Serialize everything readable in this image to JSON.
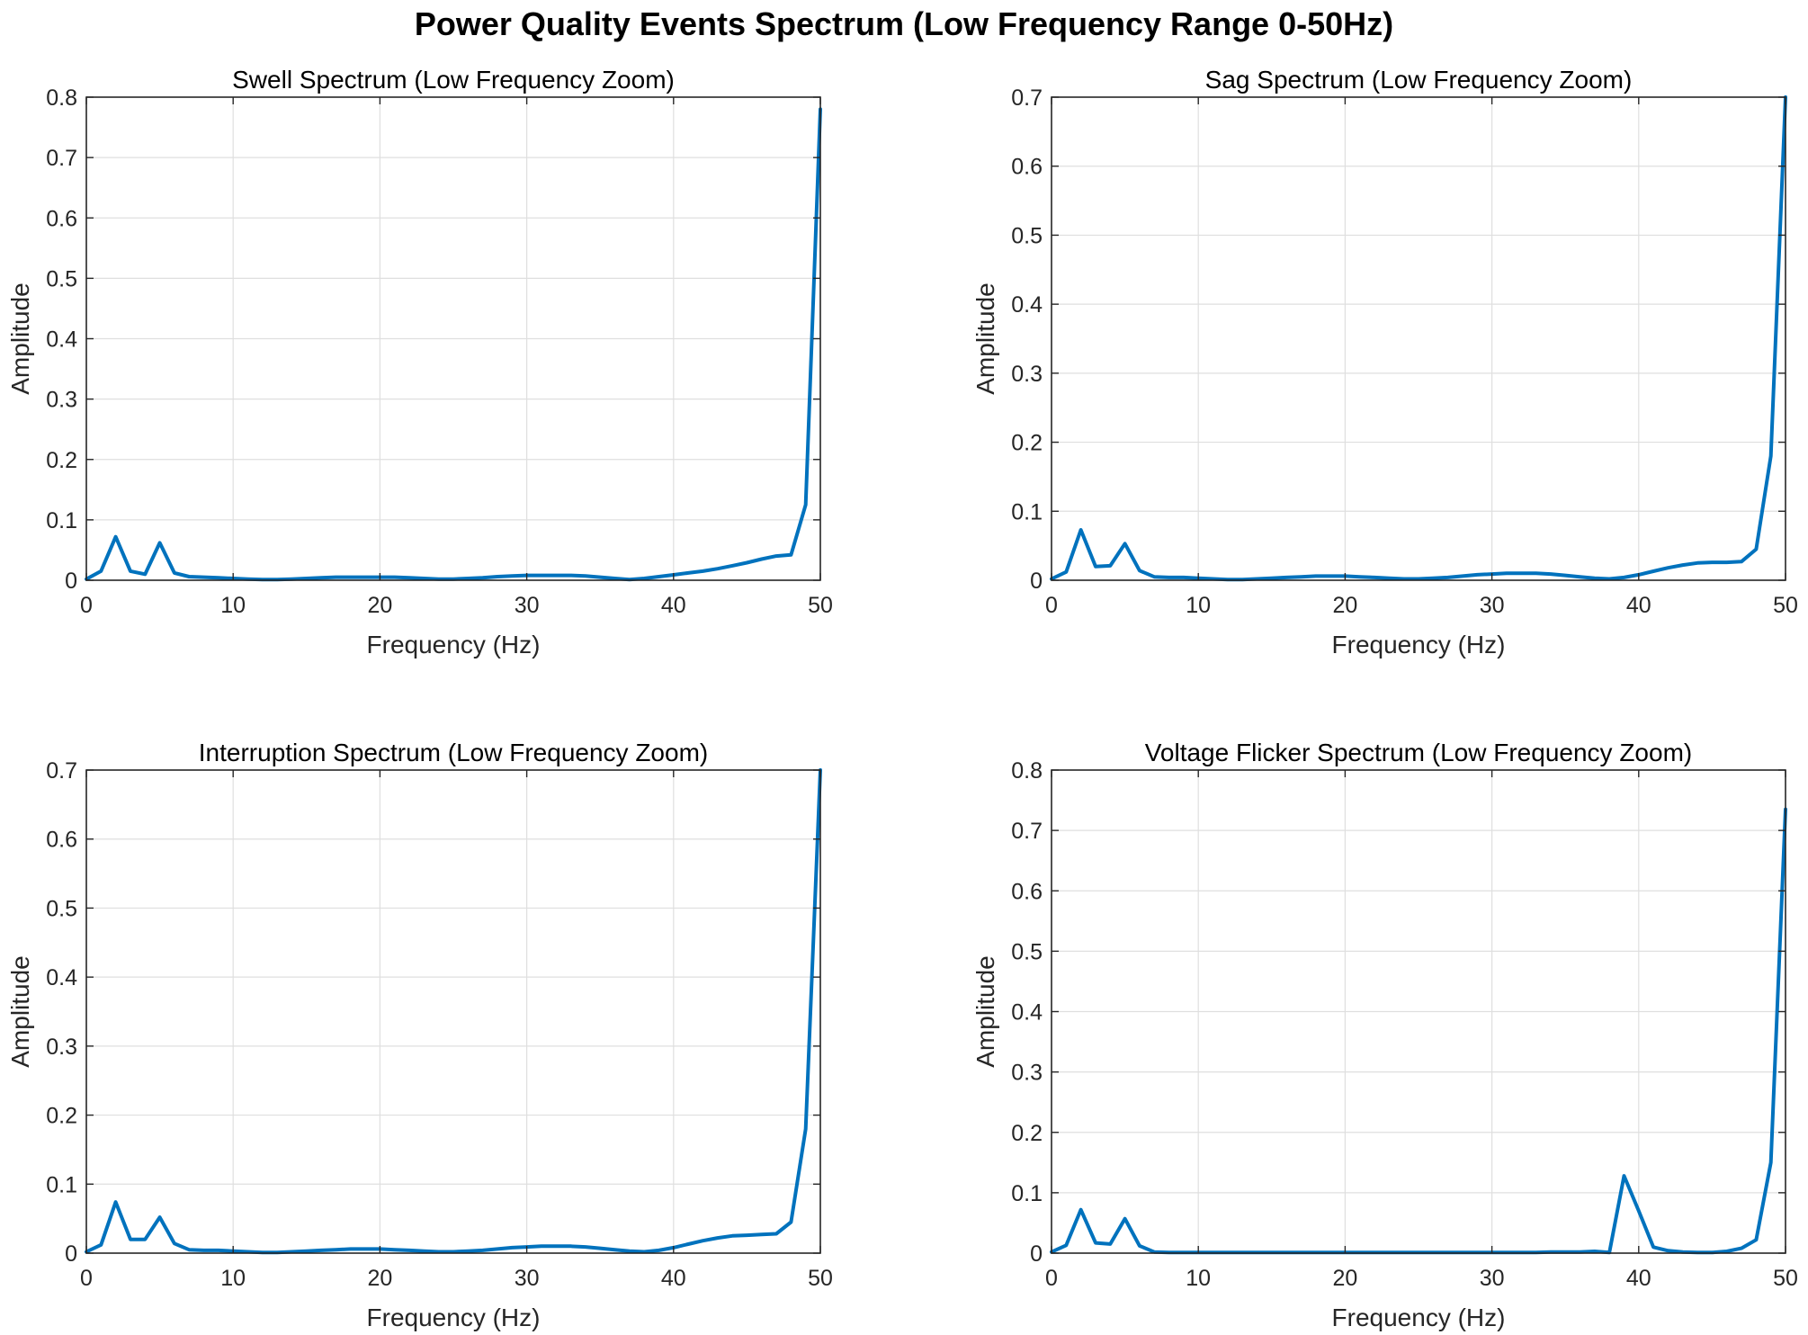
{
  "figure": {
    "title": "Power Quality Events Spectrum (Low Frequency Range 0-50Hz)"
  },
  "colors": {
    "line": "#0072BD",
    "grid": "#dfdfdf",
    "axis": "#262626"
  },
  "chart_data": [
    {
      "type": "line",
      "title": "Swell Spectrum (Low Frequency Zoom)",
      "xlabel": "Frequency (Hz)",
      "ylabel": "Amplitude",
      "xlim": [
        0,
        50
      ],
      "ylim": [
        0,
        0.8
      ],
      "xticks": [
        0,
        10,
        20,
        30,
        40,
        50
      ],
      "yticks": [
        0,
        0.1,
        0.2,
        0.3,
        0.4,
        0.5,
        0.6,
        0.7,
        0.8
      ],
      "grid": true,
      "series": [
        {
          "x": [
            0,
            1,
            2,
            3,
            4,
            5,
            6,
            7,
            8,
            9,
            10,
            11,
            12,
            13,
            14,
            15,
            16,
            17,
            18,
            19,
            20,
            21,
            22,
            23,
            24,
            25,
            26,
            27,
            28,
            29,
            30,
            31,
            32,
            33,
            34,
            35,
            36,
            37,
            38,
            39,
            40,
            41,
            42,
            43,
            44,
            45,
            46,
            47,
            48,
            49,
            50
          ],
          "y": [
            0.002,
            0.015,
            0.072,
            0.015,
            0.01,
            0.062,
            0.012,
            0.006,
            0.005,
            0.004,
            0.003,
            0.002,
            0.001,
            0.001,
            0.002,
            0.003,
            0.004,
            0.005,
            0.005,
            0.005,
            0.005,
            0.005,
            0.004,
            0.003,
            0.002,
            0.002,
            0.003,
            0.004,
            0.006,
            0.007,
            0.008,
            0.008,
            0.008,
            0.008,
            0.007,
            0.005,
            0.003,
            0.001,
            0.003,
            0.006,
            0.009,
            0.012,
            0.015,
            0.019,
            0.024,
            0.029,
            0.035,
            0.04,
            0.042,
            0.125,
            0.78
          ]
        }
      ]
    },
    {
      "type": "line",
      "title": "Sag Spectrum (Low Frequency Zoom)",
      "xlabel": "Frequency (Hz)",
      "ylabel": "Amplitude",
      "xlim": [
        0,
        50
      ],
      "ylim": [
        0,
        0.7
      ],
      "xticks": [
        0,
        10,
        20,
        30,
        40,
        50
      ],
      "yticks": [
        0,
        0.1,
        0.2,
        0.3,
        0.4,
        0.5,
        0.6,
        0.7
      ],
      "grid": true,
      "series": [
        {
          "x": [
            0,
            1,
            2,
            3,
            4,
            5,
            6,
            7,
            8,
            9,
            10,
            11,
            12,
            13,
            14,
            15,
            16,
            17,
            18,
            19,
            20,
            21,
            22,
            23,
            24,
            25,
            26,
            27,
            28,
            29,
            30,
            31,
            32,
            33,
            34,
            35,
            36,
            37,
            38,
            39,
            40,
            41,
            42,
            43,
            44,
            45,
            46,
            47,
            48,
            49,
            50
          ],
          "y": [
            0.002,
            0.012,
            0.073,
            0.02,
            0.021,
            0.053,
            0.014,
            0.005,
            0.004,
            0.004,
            0.003,
            0.002,
            0.001,
            0.001,
            0.002,
            0.003,
            0.004,
            0.005,
            0.006,
            0.006,
            0.006,
            0.005,
            0.004,
            0.003,
            0.002,
            0.002,
            0.003,
            0.004,
            0.006,
            0.008,
            0.009,
            0.01,
            0.01,
            0.01,
            0.009,
            0.007,
            0.005,
            0.003,
            0.002,
            0.004,
            0.008,
            0.013,
            0.018,
            0.022,
            0.025,
            0.026,
            0.026,
            0.027,
            0.045,
            0.18,
            0.7
          ]
        }
      ]
    },
    {
      "type": "line",
      "title": "Interruption Spectrum (Low Frequency Zoom)",
      "xlabel": "Frequency (Hz)",
      "ylabel": "Amplitude",
      "xlim": [
        0,
        50
      ],
      "ylim": [
        0,
        0.7
      ],
      "xticks": [
        0,
        10,
        20,
        30,
        40,
        50
      ],
      "yticks": [
        0,
        0.1,
        0.2,
        0.3,
        0.4,
        0.5,
        0.6,
        0.7
      ],
      "grid": true,
      "series": [
        {
          "x": [
            0,
            1,
            2,
            3,
            4,
            5,
            6,
            7,
            8,
            9,
            10,
            11,
            12,
            13,
            14,
            15,
            16,
            17,
            18,
            19,
            20,
            21,
            22,
            23,
            24,
            25,
            26,
            27,
            28,
            29,
            30,
            31,
            32,
            33,
            34,
            35,
            36,
            37,
            38,
            39,
            40,
            41,
            42,
            43,
            44,
            45,
            46,
            47,
            48,
            49,
            50
          ],
          "y": [
            0.002,
            0.012,
            0.074,
            0.02,
            0.02,
            0.052,
            0.014,
            0.005,
            0.004,
            0.004,
            0.003,
            0.002,
            0.001,
            0.001,
            0.002,
            0.003,
            0.004,
            0.005,
            0.006,
            0.006,
            0.006,
            0.005,
            0.004,
            0.003,
            0.002,
            0.002,
            0.003,
            0.004,
            0.006,
            0.008,
            0.009,
            0.01,
            0.01,
            0.01,
            0.009,
            0.007,
            0.005,
            0.003,
            0.002,
            0.004,
            0.008,
            0.013,
            0.018,
            0.022,
            0.025,
            0.026,
            0.027,
            0.028,
            0.045,
            0.18,
            0.7
          ]
        }
      ]
    },
    {
      "type": "line",
      "title": "Voltage Flicker Spectrum (Low Frequency Zoom)",
      "xlabel": "Frequency (Hz)",
      "ylabel": "Amplitude",
      "xlim": [
        0,
        50
      ],
      "ylim": [
        0,
        0.8
      ],
      "xticks": [
        0,
        10,
        20,
        30,
        40,
        50
      ],
      "yticks": [
        0,
        0.1,
        0.2,
        0.3,
        0.4,
        0.5,
        0.6,
        0.7,
        0.8
      ],
      "grid": true,
      "series": [
        {
          "x": [
            0,
            1,
            2,
            3,
            4,
            5,
            6,
            7,
            8,
            9,
            10,
            11,
            12,
            13,
            14,
            15,
            16,
            17,
            18,
            19,
            20,
            21,
            22,
            23,
            24,
            25,
            26,
            27,
            28,
            29,
            30,
            31,
            32,
            33,
            34,
            35,
            36,
            37,
            38,
            39,
            40,
            41,
            42,
            43,
            44,
            45,
            46,
            47,
            48,
            49,
            50
          ],
          "y": [
            0.002,
            0.013,
            0.072,
            0.017,
            0.015,
            0.057,
            0.012,
            0.002,
            0.001,
            0.001,
            0.001,
            0.001,
            0.001,
            0.001,
            0.001,
            0.001,
            0.001,
            0.001,
            0.001,
            0.001,
            0.001,
            0.001,
            0.001,
            0.001,
            0.001,
            0.001,
            0.001,
            0.001,
            0.001,
            0.001,
            0.001,
            0.001,
            0.001,
            0.001,
            0.002,
            0.002,
            0.002,
            0.003,
            0.001,
            0.128,
            0.07,
            0.01,
            0.004,
            0.002,
            0.001,
            0.001,
            0.003,
            0.008,
            0.022,
            0.15,
            0.735
          ]
        }
      ]
    }
  ]
}
